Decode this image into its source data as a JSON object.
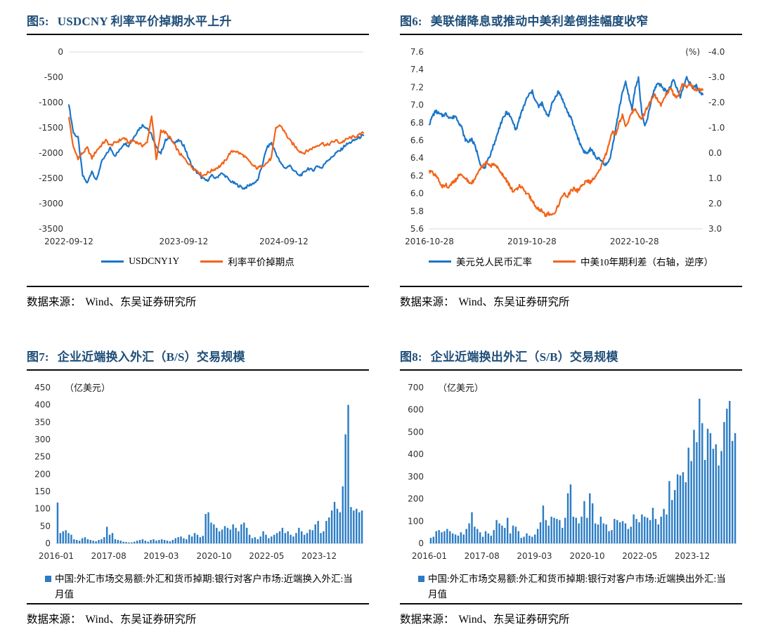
{
  "page": {
    "background": "#ffffff"
  },
  "colors": {
    "blue": "#1B75C8",
    "orange": "#F26419",
    "bar_blue": "#2B7CC4",
    "title_navy": "#1F4E79",
    "grid": "#D9D9D9",
    "rule": "#0A0A0A"
  },
  "source": {
    "label": "数据来源：",
    "text": "Wind、东吴证券研究所"
  },
  "chart_data": [
    {
      "num": "图5:",
      "title": "USDCNY 利率平价掉期水平上升",
      "type": "line",
      "gutter_left": 60,
      "gutter_right": 8,
      "y_left": {
        "min": -3500,
        "max": 0,
        "step": 500,
        "decimals": 0,
        "grid_at": 0
      },
      "x_ticks": [
        {
          "label": "2022-09-12",
          "f": 0.0
        },
        {
          "label": "2023-09-12",
          "f": 0.39
        },
        {
          "label": "2024-09-12",
          "f": 0.73
        }
      ],
      "legend_position": "bottom-center",
      "series": [
        {
          "name": "USDCNY1Y",
          "color": "#1B75C8",
          "axis": "left",
          "noise": 28,
          "values": [
            -1050,
            -1600,
            -1700,
            -2450,
            -2600,
            -2350,
            -2550,
            -2200,
            -2050,
            -1900,
            -2050,
            -1950,
            -1800,
            -1850,
            -1700,
            -1550,
            -1450,
            -1500,
            -1650,
            -1900,
            -2000,
            -1750,
            -1700,
            -1800,
            -1750,
            -1850,
            -2100,
            -2300,
            -2400,
            -2500,
            -2550,
            -2450,
            -2500,
            -2400,
            -2450,
            -2550,
            -2600,
            -2650,
            -2700,
            -2650,
            -2600,
            -2550,
            -2250,
            -1900,
            -1800,
            -2000,
            -2200,
            -2300,
            -2250,
            -2350,
            -2450,
            -2400,
            -2300,
            -2350,
            -2250,
            -2300,
            -2150,
            -2100,
            -2000,
            -1950,
            -1850,
            -1800,
            -1750,
            -1700,
            -1650
          ]
        },
        {
          "name": "利率平价掉期点",
          "color": "#F26419",
          "axis": "left",
          "noise": 30,
          "values": [
            -1300,
            -1900,
            -2100,
            -2000,
            -1900,
            -2100,
            -1950,
            -1850,
            -1750,
            -1850,
            -1800,
            -1750,
            -1700,
            -1800,
            -1750,
            -1800,
            -1850,
            -1800,
            -1250,
            -2150,
            -1550,
            -1600,
            -1700,
            -1850,
            -2000,
            -2100,
            -2200,
            -2300,
            -2350,
            -2450,
            -2400,
            -2350,
            -2300,
            -2250,
            -2150,
            -2000,
            -1950,
            -2000,
            -2050,
            -2150,
            -2250,
            -2300,
            -2250,
            -2200,
            -2100,
            -1500,
            -1450,
            -1600,
            -1750,
            -1850,
            -1950,
            -2000,
            -1950,
            -1900,
            -1850,
            -1800,
            -1850,
            -1800,
            -1750,
            -1800,
            -1750,
            -1700,
            -1680,
            -1650,
            -1600
          ]
        }
      ]
    },
    {
      "num": "图6:",
      "title": "美联储降息或推动中美利差倒挂幅度收窄",
      "type": "line",
      "gutter_left": 42,
      "gutter_right": 56,
      "y_left": {
        "min": 5.6,
        "max": 7.6,
        "step": 0.2,
        "decimals": 1,
        "grid_at": 5.6
      },
      "y_right": {
        "min": -4.0,
        "max": 3.0,
        "step": 1.0,
        "decimals": 1,
        "inverted": true,
        "unit": "(%)"
      },
      "x_ticks": [
        {
          "label": "2016-10-28",
          "f": 0.0
        },
        {
          "label": "2019-10-28",
          "f": 0.375
        },
        {
          "label": "2022-10-28",
          "f": 0.75
        }
      ],
      "legend_position": "bottom-center",
      "series": [
        {
          "name": "美元兑人民币汇率",
          "color": "#1B75C8",
          "axis": "left",
          "noise": 0.02,
          "values": [
            6.78,
            6.88,
            6.93,
            6.9,
            6.88,
            6.9,
            6.87,
            6.85,
            6.88,
            6.82,
            6.75,
            6.62,
            6.58,
            6.62,
            6.55,
            6.45,
            6.32,
            6.28,
            6.35,
            6.45,
            6.55,
            6.65,
            6.78,
            6.85,
            6.92,
            6.88,
            6.8,
            6.72,
            6.85,
            6.95,
            7.05,
            7.12,
            7.15,
            7.05,
            6.98,
            7.02,
            6.92,
            6.88,
            7.0,
            7.08,
            7.15,
            7.1,
            7.0,
            6.92,
            6.85,
            6.75,
            6.65,
            6.55,
            6.48,
            6.45,
            6.5,
            6.46,
            6.4,
            6.38,
            6.35,
            6.32,
            6.38,
            6.55,
            6.75,
            6.95,
            7.15,
            7.25,
            7.1,
            6.95,
            7.2,
            7.3,
            6.92,
            6.75,
            6.88,
            7.05,
            7.18,
            7.25,
            7.22,
            7.18,
            7.15,
            7.22,
            7.28,
            7.18,
            7.1,
            7.2,
            7.32,
            7.25,
            7.18,
            7.22,
            7.15,
            7.12
          ]
        },
        {
          "name": "中美10年期利差（右轴，逆序）",
          "color": "#F26419",
          "axis": "right",
          "noise": 0.07,
          "values": [
            0.7,
            0.8,
            0.9,
            1.1,
            1.3,
            1.25,
            1.35,
            1.2,
            1.1,
            0.9,
            0.8,
            1.0,
            1.1,
            1.2,
            1.05,
            0.85,
            0.6,
            0.45,
            0.35,
            0.5,
            0.45,
            0.55,
            0.7,
            0.9,
            1.1,
            1.3,
            1.5,
            1.45,
            1.3,
            1.4,
            1.55,
            1.7,
            1.9,
            2.1,
            2.2,
            2.3,
            2.45,
            2.4,
            2.45,
            2.35,
            2.1,
            1.8,
            1.6,
            1.7,
            1.5,
            1.4,
            1.5,
            1.35,
            1.2,
            1.1,
            1.15,
            1.0,
            0.9,
            0.7,
            0.3,
            0.0,
            -0.5,
            -0.9,
            -0.7,
            -1.2,
            -1.5,
            -1.1,
            -1.3,
            -1.6,
            -1.8,
            -1.5,
            -1.3,
            -1.6,
            -1.9,
            -2.1,
            -2.3,
            -2.1,
            -1.9,
            -2.2,
            -2.4,
            -2.6,
            -2.3,
            -2.2,
            -2.5,
            -2.8,
            -2.6,
            -2.7,
            -2.6,
            -2.5,
            -2.55,
            -2.5
          ]
        }
      ]
    },
    {
      "num": "图7:",
      "title": "企业近端换入外汇（B/S）交易规模",
      "type": "bar",
      "gutter_left": 42,
      "gutter_right": 8,
      "unit": "（亿美元）",
      "color": "#2B7CC4",
      "y": {
        "min": 0,
        "max": 450,
        "step": 50,
        "decimals": 0
      },
      "x_ticks": [
        {
          "label": "2016-01",
          "f": 0.0
        },
        {
          "label": "2017-08",
          "f": 0.171
        },
        {
          "label": "2019-03",
          "f": 0.342
        },
        {
          "label": "2020-10",
          "f": 0.514
        },
        {
          "label": "2022-05",
          "f": 0.685
        },
        {
          "label": "2023-12",
          "f": 0.856
        }
      ],
      "legend": "中国:外汇市场交易额:外汇和货币掉期:银行对客户市场:近端换入外汇:当月值",
      "values": [
        118,
        30,
        35,
        38,
        30,
        25,
        12,
        10,
        8,
        15,
        18,
        12,
        10,
        8,
        6,
        10,
        12,
        18,
        48,
        25,
        30,
        12,
        10,
        8,
        5,
        4,
        3,
        3,
        5,
        8,
        10,
        12,
        8,
        5,
        10,
        12,
        8,
        10,
        12,
        10,
        8,
        6,
        10,
        15,
        18,
        20,
        15,
        12,
        25,
        20,
        30,
        25,
        18,
        22,
        85,
        90,
        60,
        55,
        45,
        35,
        40,
        50,
        45,
        40,
        55,
        45,
        35,
        55,
        60,
        45,
        25,
        15,
        18,
        12,
        20,
        35,
        25,
        15,
        20,
        25,
        30,
        35,
        45,
        30,
        35,
        25,
        20,
        30,
        45,
        35,
        25,
        30,
        40,
        38,
        55,
        65,
        30,
        35,
        65,
        75,
        95,
        120,
        100,
        90,
        165,
        315,
        400,
        105,
        95,
        100,
        90,
        95
      ]
    },
    {
      "num": "图8:",
      "title": "企业近端换出外汇（S/B）交易规模",
      "type": "bar",
      "gutter_left": 42,
      "gutter_right": 8,
      "unit": "（亿美元）",
      "color": "#2B7CC4",
      "y": {
        "min": 0,
        "max": 700,
        "step": 100,
        "decimals": 0
      },
      "x_ticks": [
        {
          "label": "2016-01",
          "f": 0.0
        },
        {
          "label": "2017-08",
          "f": 0.171
        },
        {
          "label": "2019-03",
          "f": 0.342
        },
        {
          "label": "2020-10",
          "f": 0.514
        },
        {
          "label": "2022-05",
          "f": 0.685
        },
        {
          "label": "2023-12",
          "f": 0.856
        }
      ],
      "legend": "中国:外汇市场交易额:外汇和货币掉期:银行对客户市场:近端换出外汇:当月值",
      "values": [
        25,
        30,
        55,
        60,
        50,
        55,
        65,
        55,
        45,
        40,
        35,
        50,
        40,
        65,
        90,
        140,
        75,
        65,
        50,
        30,
        55,
        45,
        35,
        60,
        105,
        90,
        80,
        70,
        115,
        45,
        80,
        75,
        55,
        25,
        30,
        45,
        35,
        30,
        40,
        65,
        95,
        170,
        105,
        80,
        120,
        115,
        110,
        105,
        70,
        115,
        225,
        265,
        120,
        115,
        90,
        120,
        190,
        115,
        225,
        180,
        90,
        85,
        120,
        90,
        85,
        55,
        60,
        110,
        105,
        95,
        100,
        90,
        65,
        75,
        130,
        110,
        95,
        130,
        120,
        115,
        105,
        160,
        110,
        85,
        120,
        155,
        130,
        280,
        195,
        240,
        310,
        305,
        320,
        275,
        430,
        370,
        510,
        455,
        650,
        540,
        375,
        515,
        495,
        425,
        445,
        350,
        415,
        545,
        605,
        640,
        460,
        495
      ]
    }
  ]
}
